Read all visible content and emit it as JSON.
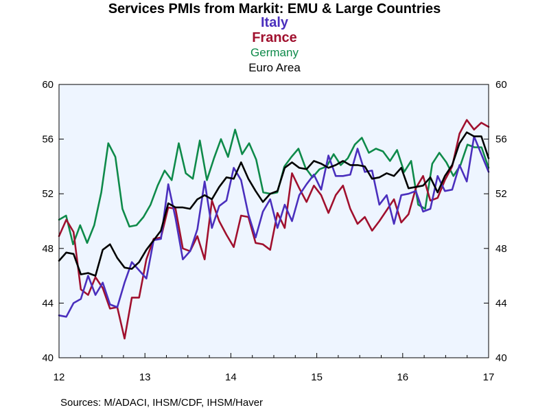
{
  "chart_data": {
    "type": "line",
    "title": "Services PMIs from Markit: EMU & Large Countries",
    "source": "Sources:  M/ADACI, IHSM/CDF, IHSM/Haver",
    "xlabel": "",
    "ylabel": "",
    "ylim": [
      40,
      60
    ],
    "yticks": [
      40,
      44,
      48,
      52,
      56,
      60
    ],
    "xlim": [
      2012,
      2017
    ],
    "xticks": [
      {
        "value": 2012,
        "label": "12"
      },
      {
        "value": 2013,
        "label": "13"
      },
      {
        "value": 2014,
        "label": "14"
      },
      {
        "value": 2015,
        "label": "15"
      },
      {
        "value": 2016,
        "label": "16"
      },
      {
        "value": 2017,
        "label": "17"
      }
    ],
    "grid": false,
    "legend": "title-stack",
    "plot_background": "#eef5ff",
    "series": [
      {
        "name": "Germany",
        "color": "#0e8a4a",
        "values": [
          50.1,
          50.4,
          48.3,
          49.7,
          48.4,
          49.7,
          52.1,
          55.7,
          54.7,
          50.9,
          49.6,
          49.7,
          50.3,
          51.2,
          52.6,
          53.7,
          53.0,
          55.7,
          53.5,
          53.1,
          55.9,
          53.0,
          54.6,
          56.0,
          54.7,
          56.7,
          54.9,
          55.7,
          54.5,
          52.1,
          52.0,
          52.1,
          54.0,
          54.7,
          55.3,
          53.9,
          53.2,
          53.8,
          54.0,
          54.9,
          54.1,
          54.6,
          55.6,
          56.1,
          55.0,
          55.3,
          55.1,
          54.4,
          55.2,
          53.6,
          54.4,
          51.2,
          50.9,
          54.2,
          55.0,
          54.3,
          53.3,
          54.1,
          55.6,
          55.4,
          55.4,
          53.9
        ]
      },
      {
        "name": "France",
        "color": "#a0102e",
        "values": [
          48.9,
          50.1,
          49.2,
          45.0,
          44.6,
          45.9,
          45.1,
          43.6,
          43.7,
          41.4,
          44.4,
          44.4,
          47.2,
          48.7,
          48.8,
          51.0,
          50.9,
          48.0,
          47.8,
          48.9,
          47.2,
          51.5,
          50.0,
          49.0,
          48.1,
          50.4,
          50.3,
          48.4,
          48.3,
          47.9,
          50.6,
          49.5,
          53.5,
          52.4,
          51.4,
          52.6,
          51.9,
          50.6,
          51.9,
          52.6,
          50.9,
          49.8,
          50.3,
          49.3,
          50.0,
          50.8,
          51.6,
          49.9,
          50.5,
          52.4,
          53.3,
          51.5,
          51.7,
          53.0,
          54.0,
          56.4,
          57.4,
          56.7,
          57.2,
          56.9
        ]
      },
      {
        "name": "Italy",
        "color": "#4a2fbd",
        "values": [
          43.1,
          43.0,
          44.0,
          44.3,
          46.0,
          44.6,
          45.5,
          43.9,
          43.7,
          45.5,
          47.0,
          46.4,
          45.8,
          48.6,
          48.7,
          52.7,
          50.2,
          47.2,
          47.8,
          49.4,
          52.9,
          49.5,
          51.1,
          51.5,
          53.9,
          53.0,
          50.5,
          48.8,
          50.7,
          51.6,
          49.5,
          51.2,
          50.0,
          51.9,
          52.7,
          53.4,
          52.3,
          54.8,
          53.3,
          53.3,
          53.4,
          55.3,
          53.6,
          53.7,
          51.2,
          51.9,
          49.8,
          51.9,
          52.0,
          52.2,
          50.7,
          50.9,
          53.3,
          52.2,
          52.3,
          54.1,
          52.9,
          56.2,
          54.9,
          53.6
        ]
      },
      {
        "name": "Euro Area",
        "color": "#000000",
        "values": [
          47.1,
          47.7,
          47.6,
          46.1,
          46.2,
          46.0,
          47.9,
          48.3,
          47.3,
          46.6,
          46.5,
          47.0,
          47.9,
          48.6,
          49.3,
          51.3,
          51.0,
          51.0,
          50.9,
          51.6,
          51.9,
          51.6,
          52.5,
          53.2,
          53.1,
          54.3,
          53.1,
          52.2,
          51.4,
          52.0,
          52.2,
          53.9,
          54.3,
          53.9,
          53.8,
          54.4,
          54.2,
          53.9,
          54.1,
          54.4,
          54.1,
          54.1,
          54.0,
          53.1,
          53.2,
          53.5,
          53.3,
          53.9,
          52.4,
          52.5,
          52.6,
          53.2,
          52.1,
          53.3,
          54.1,
          55.7,
          56.5,
          56.2,
          56.2,
          54.6
        ]
      }
    ]
  }
}
